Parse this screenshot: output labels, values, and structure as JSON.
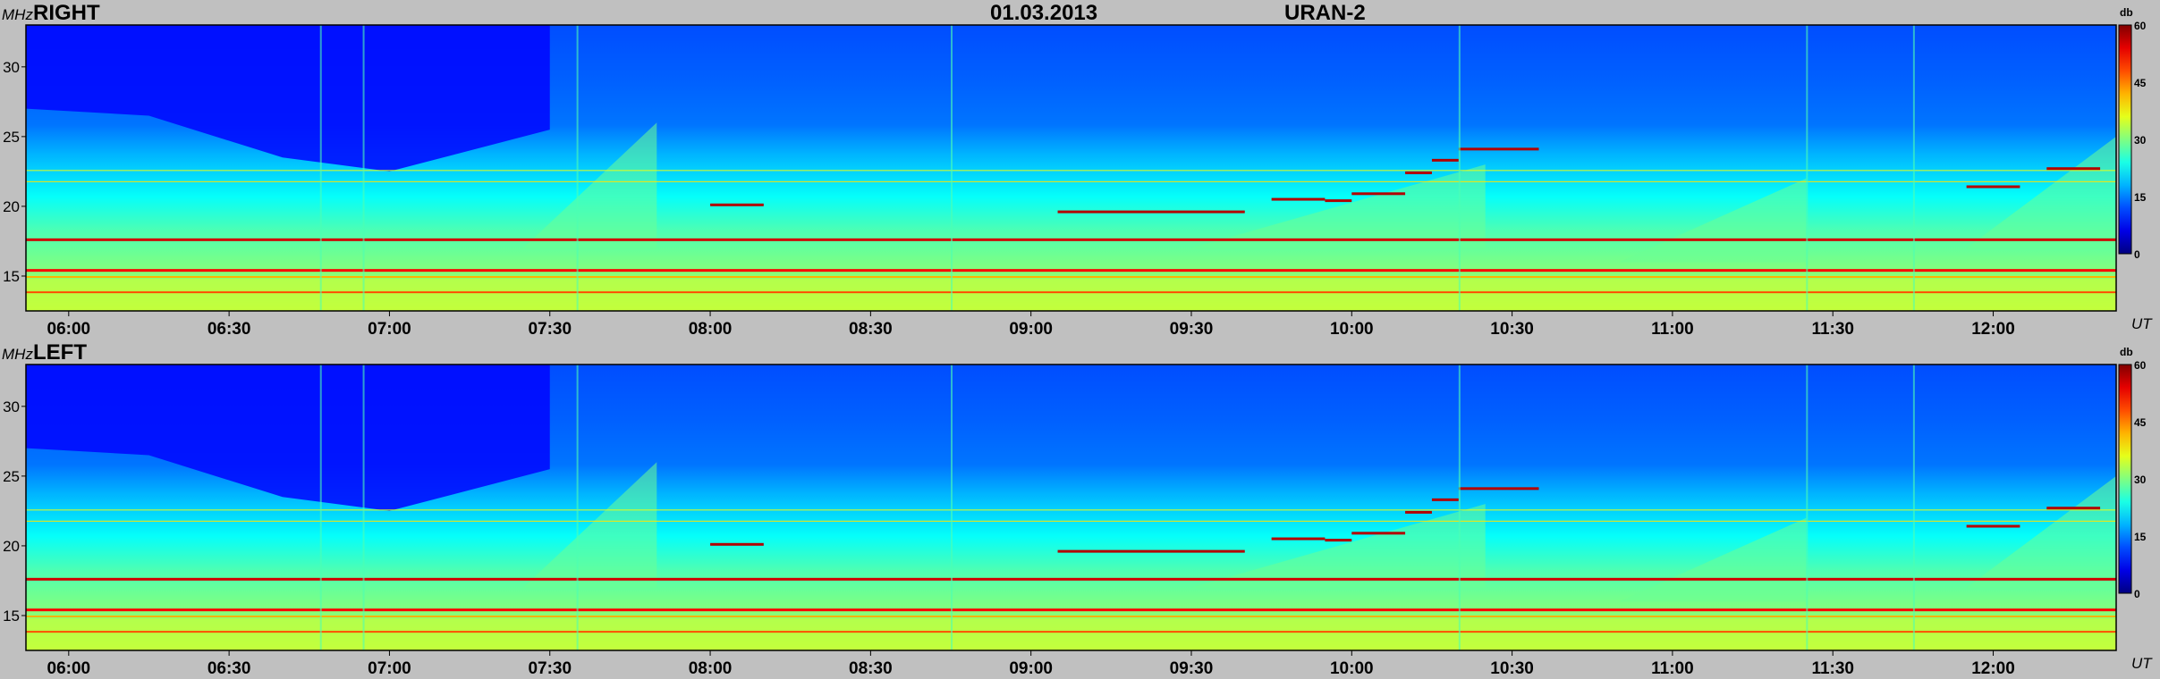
{
  "header": {
    "date": "01.03.2013",
    "instrument": "URAN-2"
  },
  "axis": {
    "y_unit": "MHz",
    "x_unit": "UT",
    "colorbar_unit": "db"
  },
  "chart_data": [
    {
      "type": "heatmap",
      "title": "RIGHT",
      "ylabel": "MHz",
      "xlabel": "UT",
      "x_range": [
        "05:52",
        "12:23"
      ],
      "ylim": [
        12.5,
        33
      ],
      "x_ticks": [
        "06:00",
        "06:30",
        "07:00",
        "07:30",
        "08:00",
        "08:30",
        "09:00",
        "09:30",
        "10:00",
        "10:30",
        "11:00",
        "11:30",
        "12:00"
      ],
      "y_ticks": [
        15,
        20,
        25,
        30
      ],
      "colorbar": {
        "label": "db",
        "range": [
          0,
          60
        ],
        "ticks": [
          0,
          15,
          30,
          45,
          60
        ]
      },
      "colorscale": "jet",
      "grid": false
    },
    {
      "type": "heatmap",
      "title": "LEFT",
      "ylabel": "MHz",
      "xlabel": "UT",
      "x_range": [
        "05:52",
        "12:23"
      ],
      "ylim": [
        12.5,
        33
      ],
      "x_ticks": [
        "06:00",
        "06:30",
        "07:00",
        "07:30",
        "08:00",
        "08:30",
        "09:00",
        "09:30",
        "10:00",
        "10:30",
        "11:00",
        "11:30",
        "12:00"
      ],
      "y_ticks": [
        15,
        20,
        25,
        30
      ],
      "colorbar": {
        "label": "db",
        "range": [
          0,
          60
        ],
        "ticks": [
          0,
          15,
          30,
          45,
          60
        ]
      },
      "colorscale": "jet",
      "grid": false
    }
  ]
}
